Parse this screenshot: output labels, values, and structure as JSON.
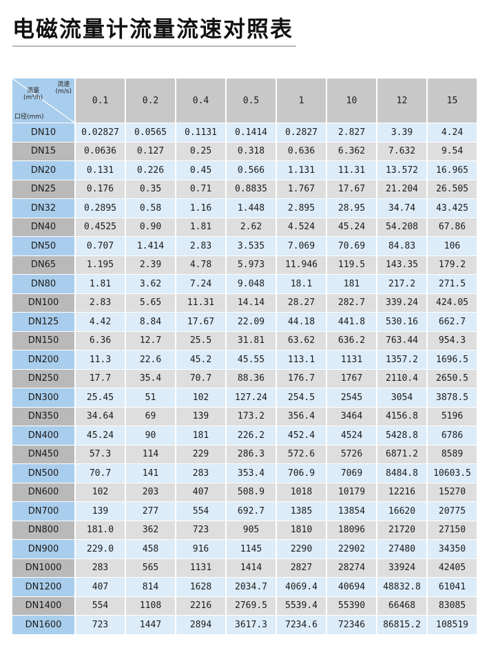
{
  "title": "电磁流量计流量流速对照表",
  "corner": {
    "velocity_label": "流速\n(m/s)",
    "flow_label": "流量\n(m³/h)",
    "diameter_label": "口径(mm)"
  },
  "velocities": [
    "0.1",
    "0.2",
    "0.4",
    "0.5",
    "1",
    "10",
    "12",
    "15"
  ],
  "rows": [
    {
      "dn": "DN10",
      "values": [
        "0.02827",
        "0.0565",
        "0.1131",
        "0.1414",
        "0.2827",
        "2.827",
        "3.39",
        "4.24"
      ]
    },
    {
      "dn": "DN15",
      "values": [
        "0.0636",
        "0.127",
        "0.25",
        "0.318",
        "0.636",
        "6.362",
        "7.632",
        "9.54"
      ]
    },
    {
      "dn": "DN20",
      "values": [
        "0.131",
        "0.226",
        "0.45",
        "0.566",
        "1.131",
        "11.31",
        "13.572",
        "16.965"
      ]
    },
    {
      "dn": "DN25",
      "values": [
        "0.176",
        "0.35",
        "0.71",
        "0.8835",
        "1.767",
        "17.67",
        "21.204",
        "26.505"
      ]
    },
    {
      "dn": "DN32",
      "values": [
        "0.2895",
        "0.58",
        "1.16",
        "1.448",
        "2.895",
        "28.95",
        "34.74",
        "43.425"
      ]
    },
    {
      "dn": "DN40",
      "values": [
        "0.4525",
        "0.90",
        "1.81",
        "2.62",
        "4.524",
        "45.24",
        "54.208",
        "67.86"
      ]
    },
    {
      "dn": "DN50",
      "values": [
        "0.707",
        "1.414",
        "2.83",
        "3.535",
        "7.069",
        "70.69",
        "84.83",
        "106"
      ]
    },
    {
      "dn": "DN65",
      "values": [
        "1.195",
        "2.39",
        "4.78",
        "5.973",
        "11.946",
        "119.5",
        "143.35",
        "179.2"
      ]
    },
    {
      "dn": "DN80",
      "values": [
        "1.81",
        "3.62",
        "7.24",
        "9.048",
        "18.1",
        "181",
        "217.2",
        "271.5"
      ]
    },
    {
      "dn": "DN100",
      "values": [
        "2.83",
        "5.65",
        "11.31",
        "14.14",
        "28.27",
        "282.7",
        "339.24",
        "424.05"
      ]
    },
    {
      "dn": "DN125",
      "values": [
        "4.42",
        "8.84",
        "17.67",
        "22.09",
        "44.18",
        "441.8",
        "530.16",
        "662.7"
      ]
    },
    {
      "dn": "DN150",
      "values": [
        "6.36",
        "12.7",
        "25.5",
        "31.81",
        "63.62",
        "636.2",
        "763.44",
        "954.3"
      ]
    },
    {
      "dn": "DN200",
      "values": [
        "11.3",
        "22.6",
        "45.2",
        "45.55",
        "113.1",
        "1131",
        "1357.2",
        "1696.5"
      ]
    },
    {
      "dn": "DN250",
      "values": [
        "17.7",
        "35.4",
        "70.7",
        "88.36",
        "176.7",
        "1767",
        "2110.4",
        "2650.5"
      ]
    },
    {
      "dn": "DN300",
      "values": [
        "25.45",
        "51",
        "102",
        "127.24",
        "254.5",
        "2545",
        "3054",
        "3878.5"
      ]
    },
    {
      "dn": "DN350",
      "values": [
        "34.64",
        "69",
        "139",
        "173.2",
        "356.4",
        "3464",
        "4156.8",
        "5196"
      ]
    },
    {
      "dn": "DN400",
      "values": [
        "45.24",
        "90",
        "181",
        "226.2",
        "452.4",
        "4524",
        "5428.8",
        "6786"
      ]
    },
    {
      "dn": "DN450",
      "values": [
        "57.3",
        "114",
        "229",
        "286.3",
        "572.6",
        "5726",
        "6871.2",
        "8589"
      ]
    },
    {
      "dn": "DN500",
      "values": [
        "70.7",
        "141",
        "283",
        "353.4",
        "706.9",
        "7069",
        "8484.8",
        "10603.5"
      ]
    },
    {
      "dn": "DN600",
      "values": [
        "102",
        "203",
        "407",
        "508.9",
        "1018",
        "10179",
        "12216",
        "15270"
      ]
    },
    {
      "dn": "DN700",
      "values": [
        "139",
        "277",
        "554",
        "692.7",
        "1385",
        "13854",
        "16620",
        "20775"
      ]
    },
    {
      "dn": "DN800",
      "values": [
        "181.0",
        "362",
        "723",
        "905",
        "1810",
        "18096",
        "21720",
        "27150"
      ]
    },
    {
      "dn": "DN900",
      "values": [
        "229.0",
        "458",
        "916",
        "1145",
        "2290",
        "22902",
        "27480",
        "34350"
      ]
    },
    {
      "dn": "DN1000",
      "values": [
        "283",
        "565",
        "1131",
        "1414",
        "2827",
        "28274",
        "33924",
        "42405"
      ]
    },
    {
      "dn": "DN1200",
      "values": [
        "407",
        "814",
        "1628",
        "2034.7",
        "4069.4",
        "40694",
        "48832.8",
        "61041"
      ]
    },
    {
      "dn": "DN1400",
      "values": [
        "554",
        "1108",
        "2216",
        "2769.5",
        "5539.4",
        "55390",
        "66468",
        "83085"
      ]
    },
    {
      "dn": "DN1600",
      "values": [
        "723",
        "1447",
        "2894",
        "3617.3",
        "7234.6",
        "72346",
        "86815.2",
        "108519"
      ]
    }
  ],
  "colors": {
    "header_gray": "#c8c8c8",
    "dn_blue": "#a9cdec",
    "dn_gray": "#b9b9b9",
    "cell_blue": "#dcecf8",
    "cell_gray": "#dedede"
  }
}
